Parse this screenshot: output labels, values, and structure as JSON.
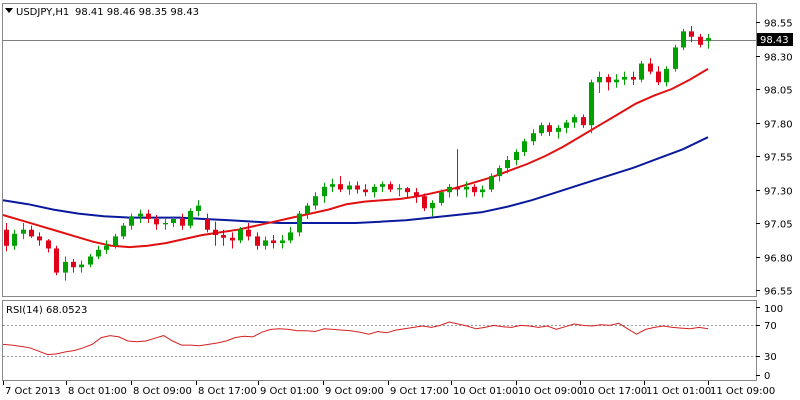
{
  "header": {
    "symbol": "USDJPY,H1",
    "ohlc": "98.41 98.46 98.35 98.43",
    "collapse_icon": "triangle-down-icon"
  },
  "price_panel": {
    "y_ticks": [
      "98.55",
      "98.30",
      "98.05",
      "97.80",
      "97.55",
      "97.30",
      "97.05",
      "96.80",
      "96.55"
    ],
    "current_price": "98.43"
  },
  "rsi_panel": {
    "label": "RSI(14) 68.0523",
    "y_ticks": [
      "100",
      "70",
      "30",
      "0"
    ]
  },
  "time_axis": {
    "labels": [
      "7 Oct 2013",
      "8 Oct 01:00",
      "8 Oct 09:00",
      "8 Oct 17:00",
      "9 Oct 01:00",
      "9 Oct 09:00",
      "9 Oct 17:00",
      "10 Oct 01:00",
      "10 Oct 09:00",
      "10 Oct 17:00",
      "11 Oct 01:00",
      "11 Oct 09:00"
    ]
  },
  "colors": {
    "bull": "#00a000",
    "bear": "#e0001a",
    "fast_ma": "#e01010",
    "slow_ma": "#0a1a9c",
    "rsi_line": "#d42020",
    "grid_level": "#9a9a9a"
  },
  "chart_data": {
    "type": "candlestick",
    "symbol": "USDJPY",
    "timeframe": "H1",
    "price_range": [
      96.5,
      98.65
    ],
    "candles": [
      [
        97.0,
        97.05,
        96.84,
        96.88
      ],
      [
        96.88,
        97.0,
        96.85,
        96.97
      ],
      [
        96.97,
        97.05,
        96.93,
        97.0
      ],
      [
        97.0,
        97.03,
        96.94,
        96.95
      ],
      [
        96.95,
        96.98,
        96.88,
        96.92
      ],
      [
        96.92,
        96.93,
        96.83,
        96.86
      ],
      [
        96.86,
        96.88,
        96.66,
        96.68
      ],
      [
        96.68,
        96.8,
        96.62,
        96.76
      ],
      [
        96.76,
        96.78,
        96.68,
        96.72
      ],
      [
        96.72,
        96.77,
        96.68,
        96.74
      ],
      [
        96.74,
        96.82,
        96.72,
        96.8
      ],
      [
        96.8,
        96.88,
        96.78,
        96.85
      ],
      [
        96.85,
        96.92,
        96.82,
        96.88
      ],
      [
        96.88,
        96.97,
        96.86,
        96.95
      ],
      [
        96.95,
        97.05,
        96.93,
        97.03
      ],
      [
        97.03,
        97.12,
        97.0,
        97.1
      ],
      [
        97.1,
        97.15,
        97.05,
        97.12
      ],
      [
        97.12,
        97.15,
        97.05,
        97.08
      ],
      [
        97.08,
        97.11,
        97.0,
        97.04
      ],
      [
        97.04,
        97.09,
        97.0,
        97.05
      ],
      [
        97.05,
        97.1,
        97.02,
        97.08
      ],
      [
        97.08,
        97.12,
        97.0,
        97.03
      ],
      [
        97.03,
        97.16,
        97.01,
        97.14
      ],
      [
        97.14,
        97.22,
        97.1,
        97.18
      ],
      [
        97.08,
        97.12,
        96.98,
        97.0
      ],
      [
        97.0,
        97.06,
        96.88,
        96.96
      ],
      [
        96.96,
        97.0,
        96.88,
        96.94
      ],
      [
        96.94,
        96.98,
        96.86,
        96.92
      ],
      [
        96.92,
        97.02,
        96.9,
        97.0
      ],
      [
        97.0,
        97.05,
        96.92,
        96.95
      ],
      [
        96.95,
        96.98,
        96.85,
        96.88
      ],
      [
        96.88,
        96.95,
        96.85,
        96.92
      ],
      [
        96.92,
        96.96,
        96.86,
        96.9
      ],
      [
        96.9,
        96.96,
        96.86,
        96.92
      ],
      [
        96.92,
        97.02,
        96.9,
        96.98
      ],
      [
        96.98,
        97.14,
        96.95,
        97.12
      ],
      [
        97.12,
        97.2,
        97.08,
        97.18
      ],
      [
        97.18,
        97.28,
        97.15,
        97.25
      ],
      [
        97.25,
        97.35,
        97.2,
        97.32
      ],
      [
        97.32,
        97.38,
        97.28,
        97.34
      ],
      [
        97.34,
        97.4,
        97.28,
        97.3
      ],
      [
        97.3,
        97.36,
        97.26,
        97.33
      ],
      [
        97.33,
        97.36,
        97.27,
        97.3
      ],
      [
        97.3,
        97.34,
        97.25,
        97.28
      ],
      [
        97.28,
        97.34,
        97.24,
        97.32
      ],
      [
        97.32,
        97.36,
        97.28,
        97.34
      ],
      [
        97.34,
        97.36,
        97.28,
        97.3
      ],
      [
        97.3,
        97.34,
        97.25,
        97.31
      ],
      [
        97.31,
        97.32,
        97.24,
        97.28
      ],
      [
        97.28,
        97.31,
        97.2,
        97.25
      ],
      [
        97.25,
        97.27,
        97.14,
        97.16
      ],
      [
        97.16,
        97.22,
        97.1,
        97.2
      ],
      [
        97.2,
        97.3,
        97.18,
        97.28
      ],
      [
        97.28,
        97.34,
        97.24,
        97.32
      ],
      [
        97.32,
        97.6,
        97.25,
        97.3
      ],
      [
        97.3,
        97.36,
        97.24,
        97.32
      ],
      [
        97.32,
        97.34,
        97.25,
        97.28
      ],
      [
        97.28,
        97.33,
        97.24,
        97.3
      ],
      [
        97.3,
        97.42,
        97.28,
        97.4
      ],
      [
        97.4,
        97.48,
        97.36,
        97.46
      ],
      [
        97.46,
        97.55,
        97.42,
        97.52
      ],
      [
        97.52,
        97.6,
        97.48,
        97.58
      ],
      [
        97.58,
        97.68,
        97.55,
        97.66
      ],
      [
        97.66,
        97.75,
        97.63,
        97.72
      ],
      [
        97.72,
        97.8,
        97.7,
        97.78
      ],
      [
        97.78,
        97.8,
        97.7,
        97.73
      ],
      [
        97.73,
        97.78,
        97.68,
        97.76
      ],
      [
        97.76,
        97.82,
        97.72,
        97.8
      ],
      [
        97.8,
        97.86,
        97.76,
        97.84
      ],
      [
        97.84,
        97.86,
        97.76,
        97.78
      ],
      [
        97.78,
        98.12,
        97.72,
        98.1
      ],
      [
        98.1,
        98.18,
        98.02,
        98.14
      ],
      [
        98.14,
        98.16,
        98.04,
        98.1
      ],
      [
        98.1,
        98.16,
        98.06,
        98.12
      ],
      [
        98.12,
        98.18,
        98.08,
        98.14
      ],
      [
        98.14,
        98.18,
        98.08,
        98.12
      ],
      [
        98.12,
        98.26,
        98.1,
        98.24
      ],
      [
        98.24,
        98.28,
        98.16,
        98.18
      ],
      [
        98.18,
        98.22,
        98.08,
        98.1
      ],
      [
        98.1,
        98.22,
        98.07,
        98.2
      ],
      [
        98.2,
        98.38,
        98.18,
        98.36
      ],
      [
        98.36,
        98.5,
        98.34,
        98.48
      ],
      [
        98.48,
        98.52,
        98.4,
        98.44
      ],
      [
        98.44,
        98.46,
        98.36,
        98.38
      ],
      [
        98.41,
        98.46,
        98.35,
        98.43
      ]
    ],
    "fast_ma": [
      97.11,
      97.07,
      97.03,
      96.99,
      96.95,
      96.91,
      96.88,
      96.87,
      96.88,
      96.9,
      96.93,
      96.96,
      96.98,
      97.0,
      97.03,
      97.06,
      97.09,
      97.12,
      97.15,
      97.19,
      97.21,
      97.22,
      97.23,
      97.25,
      97.28,
      97.31,
      97.35,
      97.39,
      97.44,
      97.49,
      97.55,
      97.62,
      97.7,
      97.78,
      97.86,
      97.94,
      98.0,
      98.05,
      98.12,
      98.2
    ],
    "slow_ma": [
      97.22,
      97.19,
      97.15,
      97.12,
      97.1,
      97.09,
      97.09,
      97.09,
      97.08,
      97.07,
      97.06,
      97.05,
      97.05,
      97.05,
      97.05,
      97.06,
      97.07,
      97.09,
      97.11,
      97.13,
      97.17,
      97.22,
      97.28,
      97.34,
      97.4,
      97.46,
      97.53,
      97.6,
      97.69
    ],
    "rsi": [
      45,
      44,
      42,
      40,
      35,
      30,
      31,
      34,
      36,
      40,
      45,
      55,
      58,
      56,
      50,
      49,
      50,
      54,
      58,
      50,
      44,
      44,
      43,
      45,
      47,
      50,
      55,
      57,
      56,
      63,
      67,
      68,
      67,
      65,
      65,
      64,
      68,
      67,
      66,
      65,
      63,
      60,
      64,
      62,
      66,
      68,
      70,
      72,
      70,
      73,
      78,
      75,
      72,
      68,
      70,
      73,
      71,
      70,
      73,
      72,
      70,
      72,
      67,
      71,
      75,
      73,
      72,
      74,
      73,
      76,
      68,
      60,
      67,
      70,
      72,
      70,
      69,
      68,
      70,
      68
    ],
    "rsi_levels": [
      70,
      30
    ],
    "rsi_range": [
      0,
      100
    ]
  }
}
